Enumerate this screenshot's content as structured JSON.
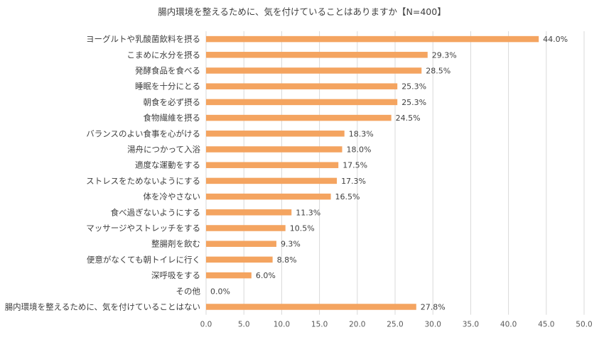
{
  "chart_data": {
    "type": "bar",
    "orientation": "horizontal",
    "title": "腸内環境を整えるために、気を付けていることはありますか【N=400】",
    "xlabel": "",
    "ylabel": "",
    "xlim": [
      0,
      50
    ],
    "ticks": [
      "0.0",
      "5.0",
      "10.0",
      "15.0",
      "20.0",
      "25.0",
      "30.0",
      "35.0",
      "40.0",
      "45.0",
      "50.0"
    ],
    "grid": true,
    "bar_color": "#F4A460",
    "categories": [
      "ヨーグルトや乳酸菌飲料を摂る",
      "こまめに水分を摂る",
      "発酵食品を食べる",
      "睡眠を十分にとる",
      "朝食を必ず摂る",
      "食物繊維を摂る",
      "バランスのよい食事を心がける",
      "湯舟につかって入浴",
      "適度な運動をする",
      "ストレスをためないようにする",
      "体を冷やさない",
      "食べ過ぎないようにする",
      "マッサージやストレッチをする",
      "整腸剤を飲む",
      "便意がなくても朝トイレに行く",
      "深呼吸をする",
      "その他",
      "腸内環境を整えるために、気を付けていることはない"
    ],
    "values": [
      44.0,
      29.3,
      28.5,
      25.3,
      25.3,
      24.5,
      18.3,
      18.0,
      17.5,
      17.3,
      16.5,
      11.3,
      10.5,
      9.3,
      8.8,
      6.0,
      0.0,
      27.8
    ],
    "value_labels": [
      "44.0%",
      "29.3%",
      "28.5%",
      "25.3%",
      "25.3%",
      "24.5%",
      "18.3%",
      "18.0%",
      "17.5%",
      "17.3%",
      "16.5%",
      "11.3%",
      "10.5%",
      "9.3%",
      "8.8%",
      "6.0%",
      "0.0%",
      "27.8%"
    ]
  }
}
